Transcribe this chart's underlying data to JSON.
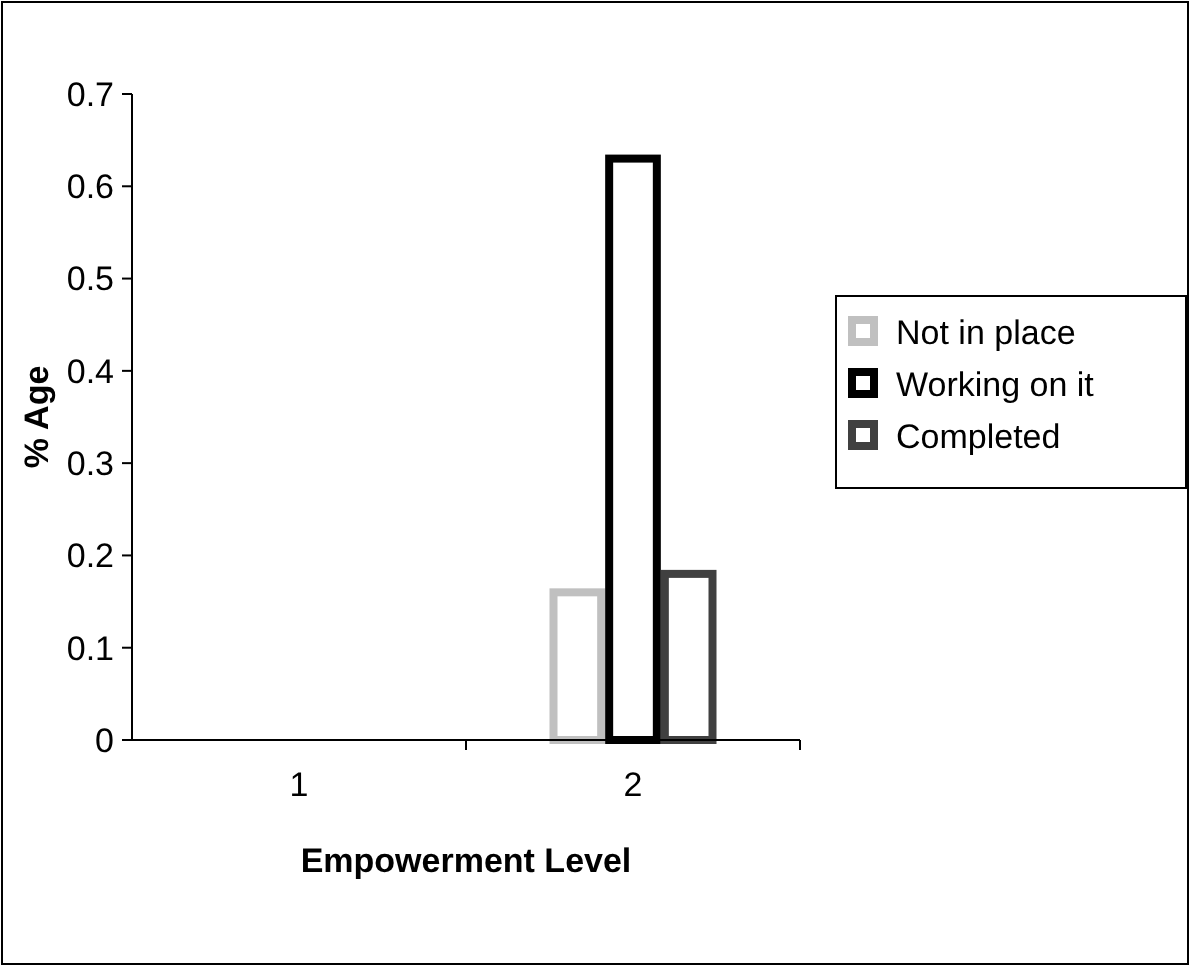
{
  "chart_data": {
    "type": "bar",
    "xlabel": "Empowerment Level",
    "ylabel": "% Age",
    "categories": [
      "1",
      "2"
    ],
    "series": [
      {
        "name": "Not in place",
        "color": "#c0c0c0",
        "values": [
          0,
          0.16
        ]
      },
      {
        "name": "Working on it",
        "color": "#000000",
        "values": [
          0,
          0.63
        ]
      },
      {
        "name": "Completed",
        "color": "#404040",
        "values": [
          0,
          0.18
        ]
      }
    ],
    "ylim": [
      0,
      0.7
    ],
    "yticks": [
      0,
      0.1,
      0.2,
      0.3,
      0.4,
      0.5,
      0.6,
      0.7
    ],
    "grid": false,
    "legend": "right"
  }
}
